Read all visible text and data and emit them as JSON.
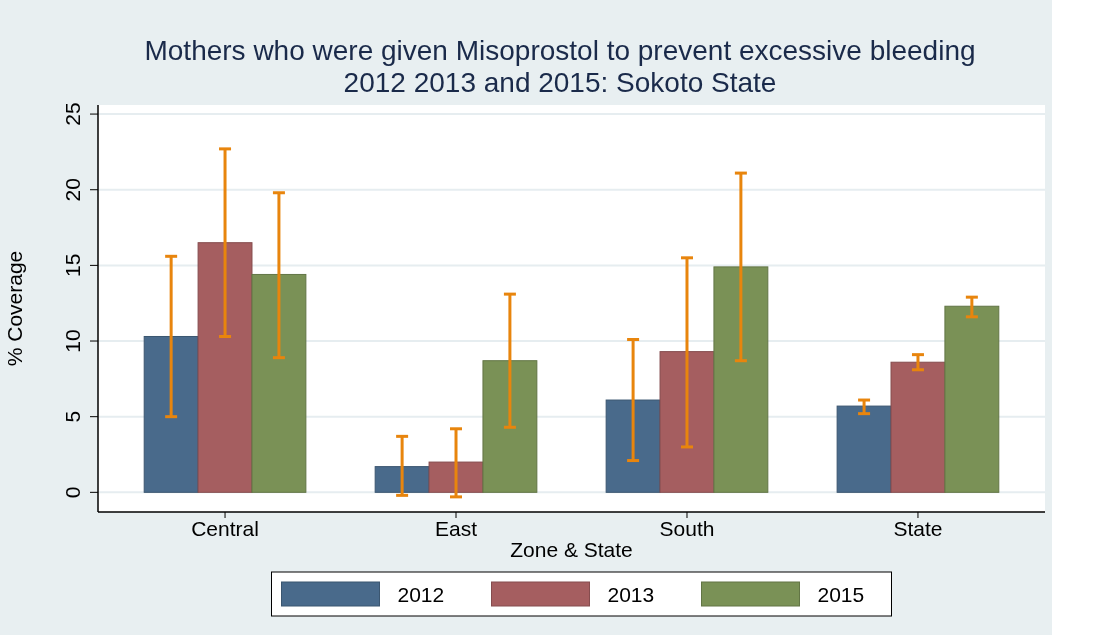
{
  "chart_data": {
    "type": "bar",
    "title": "Mothers who were given Misoprostol to prevent excessive bleeding\n2012 2013 and 2015: Sokoto State",
    "xlabel": "Zone & State",
    "ylabel": "% Coverage",
    "categories": [
      "Central",
      "East",
      "South",
      "State"
    ],
    "series": [
      {
        "name": "2012",
        "color": "#496a8b",
        "values": [
          10.3,
          1.7,
          6.1,
          5.7
        ],
        "errors": [
          [
            5.0,
            15.6
          ],
          [
            -0.2,
            3.7
          ],
          [
            2.1,
            10.1
          ],
          [
            5.2,
            6.1
          ]
        ]
      },
      {
        "name": "2013",
        "color": "#a55e60",
        "values": [
          16.5,
          2.0,
          9.3,
          8.6
        ],
        "errors": [
          [
            10.3,
            22.7
          ],
          [
            -0.3,
            4.2
          ],
          [
            3.0,
            15.5
          ],
          [
            8.1,
            9.1
          ]
        ]
      },
      {
        "name": "2015",
        "color": "#7a9156",
        "values": [
          14.4,
          8.7,
          14.9,
          12.3
        ],
        "errors": [
          [
            8.9,
            19.8
          ],
          [
            4.3,
            13.1
          ],
          [
            8.7,
            21.1
          ],
          [
            11.6,
            12.9
          ]
        ]
      }
    ],
    "ylim": [
      -1.3,
      25.6
    ],
    "yticks": [
      0,
      5,
      10,
      15,
      20,
      25
    ],
    "grid": "y",
    "legend": "bottom"
  }
}
